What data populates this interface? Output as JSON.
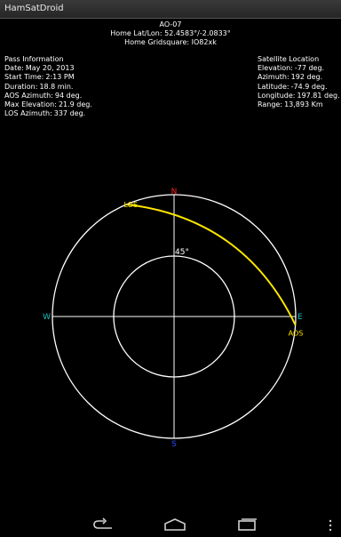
{
  "app": {
    "title": "HamSatDroid"
  },
  "header": {
    "satellite": "AO-07",
    "home_latlon": "Home Lat/Lon: 52.4583°/-2.0833°",
    "home_grid": "Home Gridsquare: IO82xk"
  },
  "pass_info": {
    "heading": "Pass Information",
    "date_label": "Date:",
    "date_value": "May 20, 2013",
    "start_label": "Start Time:",
    "start_value": "2:13 PM",
    "duration_label": "Duration:",
    "duration_value": "18.8 min.",
    "aos_label": "AOS Azimuth:",
    "aos_value": "94 deg.",
    "maxel_label": "Max Elevation:",
    "maxel_value": "21.9 deg.",
    "los_label": "LOS Azimuth:",
    "los_value": "337 deg."
  },
  "sat_location": {
    "heading": "Satellite Location",
    "elev_label": "Elevation:",
    "elev_value": "-77 deg.",
    "az_label": "Azimuth:",
    "az_value": "192 deg.",
    "lat_label": "Latitude:",
    "lat_value": "-74.9 deg.",
    "lon_label": "Longitude:",
    "lon_value": "197.81 deg.",
    "range_label": "Range:",
    "range_value": "13,893 Km"
  },
  "polar": {
    "north": "N",
    "south": "S",
    "east": "E",
    "west": "W",
    "ring_label": "45°",
    "los_label": "LOS",
    "aos_label": "AOS",
    "aos_azimuth": 94,
    "los_azimuth": 337,
    "max_elevation": 21.9,
    "colors": {
      "north": "#ff2020",
      "south": "#2a4cff",
      "ew": "#19c0c0",
      "track": "#ffe600",
      "ring": "#ffffff"
    }
  },
  "nav": {
    "icons": [
      "back-icon",
      "home-icon",
      "recent-apps-icon",
      "overflow-menu-icon"
    ]
  }
}
